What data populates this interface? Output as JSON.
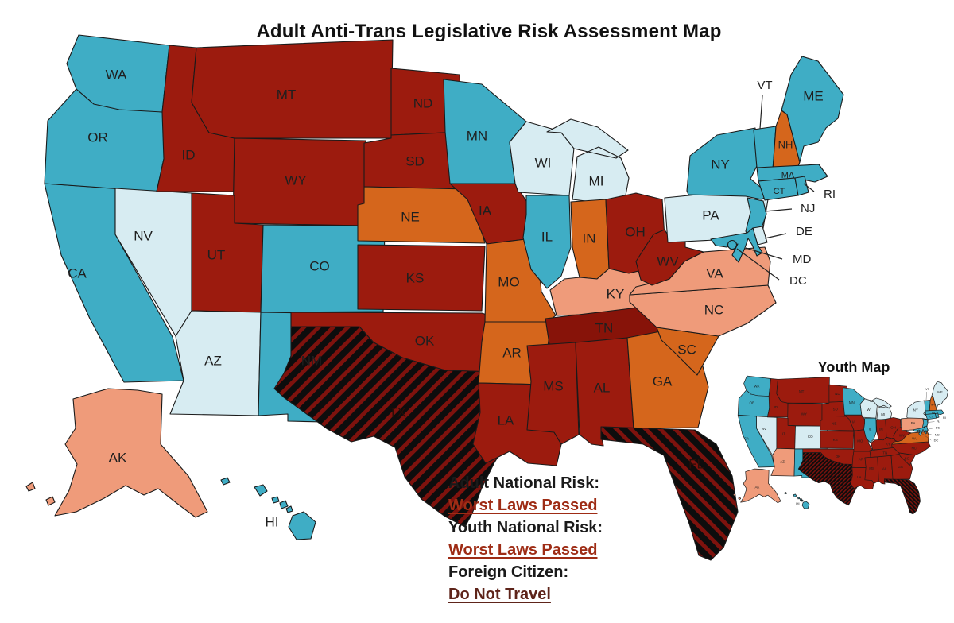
{
  "title": "Adult Anti-Trans Legislative Risk Assessment Map",
  "youth_map": {
    "title": "Youth Map"
  },
  "legend": {
    "items": [
      {
        "label": "Adult National Risk:",
        "value": "Worst Laws Passed",
        "color": "#9E2C15"
      },
      {
        "label": "Youth National Risk:",
        "value": "Worst Laws Passed",
        "color": "#9E2C15"
      },
      {
        "label": "Foreign Citizen:",
        "value": "Do Not Travel",
        "color": "#5E241A"
      }
    ]
  },
  "palette": {
    "teal": "#3FADC5",
    "light_blue": "#D7ECF2",
    "salmon": "#EF9B7A",
    "orange": "#D5661C",
    "dark_red": "#9C1B0E",
    "dark_red_deep": "#871309",
    "hatch_background": "#0D0D0D",
    "hatch_stripe": "#7E120D",
    "state_border": "#1A1A1A",
    "label_color": "#1F1F1F"
  },
  "states": {
    "WA": {
      "label": "WA",
      "adult": "teal",
      "youth": "teal"
    },
    "OR": {
      "label": "OR",
      "adult": "teal",
      "youth": "teal"
    },
    "CA": {
      "label": "CA",
      "adult": "teal",
      "youth": "teal"
    },
    "NV": {
      "label": "NV",
      "adult": "light_blue",
      "youth": "light_blue"
    },
    "ID": {
      "label": "ID",
      "adult": "dark_red",
      "youth": "dark_red"
    },
    "MT": {
      "label": "MT",
      "adult": "dark_red",
      "youth": "dark_red"
    },
    "WY": {
      "label": "WY",
      "adult": "dark_red",
      "youth": "dark_red"
    },
    "UT": {
      "label": "UT",
      "adult": "dark_red",
      "youth": "dark_red"
    },
    "AZ": {
      "label": "AZ",
      "adult": "light_blue",
      "youth": "salmon"
    },
    "NM": {
      "label": "NM",
      "adult": "teal",
      "youth": "teal"
    },
    "CO": {
      "label": "CO",
      "adult": "teal",
      "youth": "light_blue"
    },
    "ND": {
      "label": "ND",
      "adult": "dark_red",
      "youth": "dark_red"
    },
    "SD": {
      "label": "SD",
      "adult": "dark_red",
      "youth": "dark_red"
    },
    "NE": {
      "label": "NE",
      "adult": "orange",
      "youth": "dark_red"
    },
    "KS": {
      "label": "KS",
      "adult": "dark_red",
      "youth": "dark_red"
    },
    "OK": {
      "label": "OK",
      "adult": "dark_red",
      "youth": "dark_red"
    },
    "TX": {
      "label": "TX",
      "adult": "hatched",
      "youth": "hatched"
    },
    "MN": {
      "label": "MN",
      "adult": "teal",
      "youth": "teal"
    },
    "IA": {
      "label": "IA",
      "adult": "dark_red",
      "youth": "dark_red"
    },
    "MO": {
      "label": "MO",
      "adult": "orange",
      "youth": "dark_red"
    },
    "AR": {
      "label": "AR",
      "adult": "orange",
      "youth": "dark_red"
    },
    "LA": {
      "label": "LA",
      "adult": "dark_red",
      "youth": "dark_red"
    },
    "WI": {
      "label": "WI",
      "adult": "light_blue",
      "youth": "light_blue"
    },
    "IL": {
      "label": "IL",
      "adult": "teal",
      "youth": "teal"
    },
    "MI": {
      "label": "MI",
      "adult": "light_blue",
      "youth": "light_blue"
    },
    "IN": {
      "label": "IN",
      "adult": "orange",
      "youth": "dark_red"
    },
    "OH": {
      "label": "OH",
      "adult": "dark_red",
      "youth": "dark_red"
    },
    "KY": {
      "label": "KY",
      "adult": "salmon",
      "youth": "dark_red"
    },
    "TN": {
      "label": "TN",
      "adult": "dark_red_deep",
      "youth": "dark_red"
    },
    "MS": {
      "label": "MS",
      "adult": "dark_red",
      "youth": "dark_red"
    },
    "AL": {
      "label": "AL",
      "adult": "dark_red",
      "youth": "dark_red"
    },
    "GA": {
      "label": "GA",
      "adult": "orange",
      "youth": "dark_red"
    },
    "SC": {
      "label": "SC",
      "adult": "orange",
      "youth": "dark_red"
    },
    "NC": {
      "label": "NC",
      "adult": "salmon",
      "youth": "dark_red"
    },
    "VA": {
      "label": "VA",
      "adult": "salmon",
      "youth": "orange"
    },
    "WV": {
      "label": "WV",
      "adult": "dark_red",
      "youth": "dark_red"
    },
    "FL": {
      "label": "FL",
      "adult": "hatched",
      "youth": "hatched"
    },
    "PA": {
      "label": "PA",
      "adult": "light_blue",
      "youth": "salmon"
    },
    "NY": {
      "label": "NY",
      "adult": "teal",
      "youth": "light_blue"
    },
    "NJ": {
      "label": "NJ",
      "adult": "teal",
      "youth": "teal"
    },
    "DE": {
      "label": "DE",
      "adult": "light_blue",
      "youth": "teal"
    },
    "MD": {
      "label": "MD",
      "adult": "teal",
      "youth": "teal"
    },
    "DC": {
      "label": "DC",
      "adult": "teal",
      "youth": "teal"
    },
    "VT": {
      "label": "VT",
      "adult": "teal",
      "youth": "teal"
    },
    "NH": {
      "label": "NH",
      "adult": "orange",
      "youth": "orange"
    },
    "ME": {
      "label": "ME",
      "adult": "teal",
      "youth": "light_blue"
    },
    "MA": {
      "label": "MA",
      "adult": "teal",
      "youth": "teal"
    },
    "CT": {
      "label": "CT",
      "adult": "teal",
      "youth": "teal"
    },
    "RI": {
      "label": "RI",
      "adult": "teal",
      "youth": "teal"
    },
    "AK": {
      "label": "AK",
      "adult": "salmon",
      "youth": "salmon"
    },
    "HI": {
      "label": "HI",
      "adult": "teal",
      "youth": "teal"
    }
  }
}
